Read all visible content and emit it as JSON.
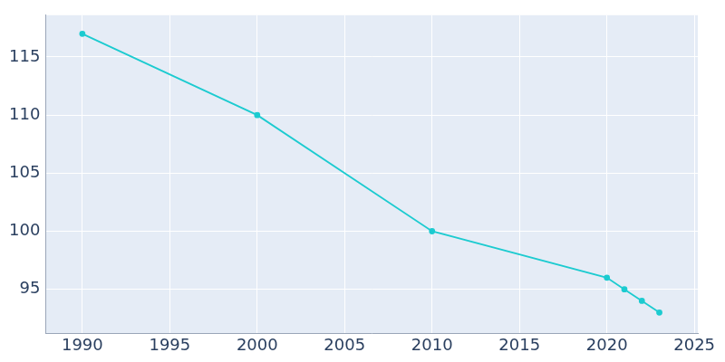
{
  "chart_data": {
    "type": "line",
    "x": [
      1990,
      2000,
      2010,
      2020,
      2021,
      2022,
      2023
    ],
    "values": [
      117,
      110,
      100,
      96,
      95,
      94,
      93
    ],
    "color": "#1ccbd0",
    "marker": "circle",
    "xlim": [
      1987.9,
      2025.2
    ],
    "xticks": [
      1990,
      1995,
      2000,
      2005,
      2010,
      2015,
      2020,
      2025
    ],
    "ylim": [
      91.2,
      118.6
    ],
    "yticks": [
      95,
      100,
      105,
      110,
      115
    ],
    "grid": true
  }
}
